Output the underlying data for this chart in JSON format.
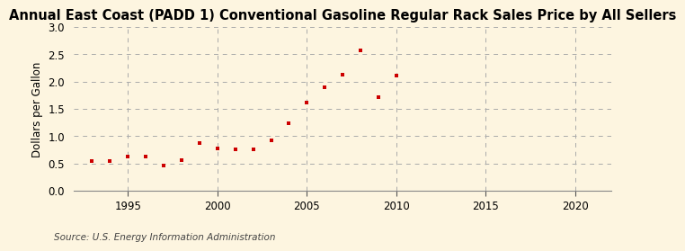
{
  "title": "Annual East Coast (PADD 1) Conventional Gasoline Regular Rack Sales Price by All Sellers",
  "ylabel": "Dollars per Gallon",
  "source": "Source: U.S. Energy Information Administration",
  "years": [
    1993,
    1994,
    1995,
    1996,
    1997,
    1998,
    1999,
    2000,
    2001,
    2002,
    2003,
    2004,
    2005,
    2006,
    2007,
    2008,
    2009,
    2010
  ],
  "values": [
    0.54,
    0.55,
    0.63,
    0.63,
    0.47,
    0.57,
    0.88,
    0.78,
    0.76,
    0.76,
    0.92,
    1.24,
    1.62,
    1.9,
    2.12,
    2.57,
    1.72,
    2.11
  ],
  "marker_color": "#cc0000",
  "bg_color": "#fdf5e0",
  "grid_color": "#aaaaaa",
  "xlim": [
    1992,
    2022
  ],
  "ylim": [
    0.0,
    3.0
  ],
  "xticks": [
    1995,
    2000,
    2005,
    2010,
    2015,
    2020
  ],
  "yticks": [
    0.0,
    0.5,
    1.0,
    1.5,
    2.0,
    2.5,
    3.0
  ],
  "title_fontsize": 10.5,
  "axis_label_fontsize": 8.5,
  "tick_fontsize": 8.5,
  "source_fontsize": 7.5
}
